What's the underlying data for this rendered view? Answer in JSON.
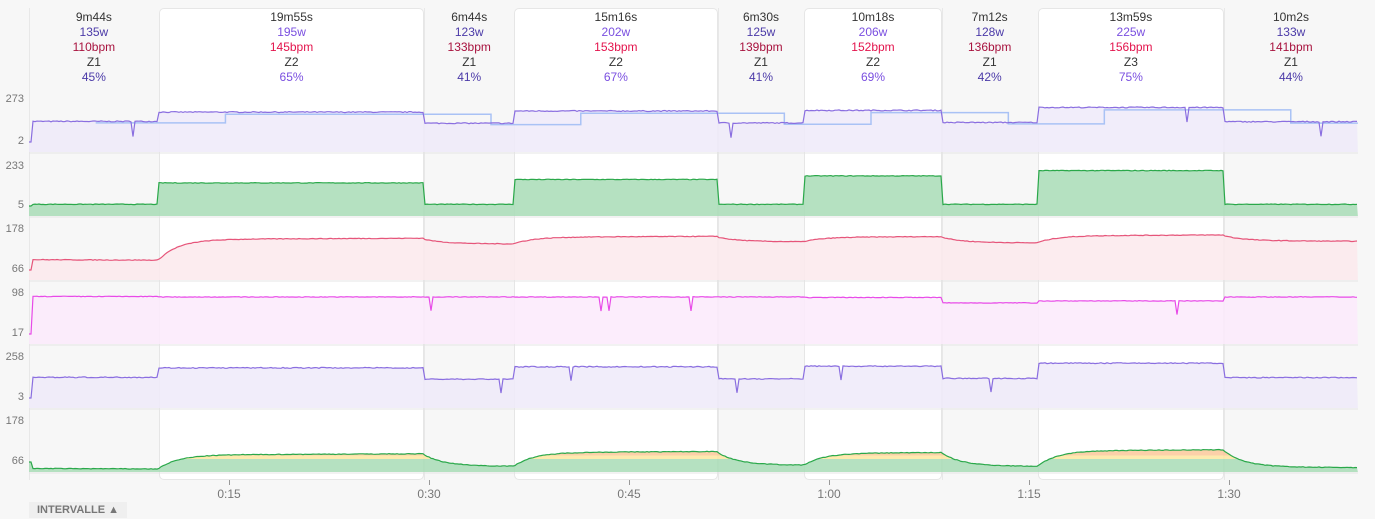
{
  "intervals": [
    {
      "duration": "9m44s",
      "minutes": 9.733,
      "watts": "135w",
      "bpm": "110bpm",
      "zone": "Z1",
      "percent": "45%",
      "type": "rest"
    },
    {
      "duration": "19m55s",
      "minutes": 19.917,
      "watts": "195w",
      "bpm": "145bpm",
      "zone": "Z2",
      "percent": "65%",
      "type": "work"
    },
    {
      "duration": "6m44s",
      "minutes": 6.733,
      "watts": "123w",
      "bpm": "133bpm",
      "zone": "Z1",
      "percent": "41%",
      "type": "rest"
    },
    {
      "duration": "15m16s",
      "minutes": 15.267,
      "watts": "202w",
      "bpm": "153bpm",
      "zone": "Z2",
      "percent": "67%",
      "type": "work"
    },
    {
      "duration": "6m30s",
      "minutes": 6.5,
      "watts": "125w",
      "bpm": "139bpm",
      "zone": "Z1",
      "percent": "41%",
      "type": "rest"
    },
    {
      "duration": "10m18s",
      "minutes": 10.3,
      "watts": "206w",
      "bpm": "152bpm",
      "zone": "Z2",
      "percent": "69%",
      "type": "work"
    },
    {
      "duration": "7m12s",
      "minutes": 7.2,
      "watts": "128w",
      "bpm": "136bpm",
      "zone": "Z1",
      "percent": "42%",
      "type": "rest"
    },
    {
      "duration": "13m59s",
      "minutes": 13.983,
      "watts": "225w",
      "bpm": "156bpm",
      "zone": "Z3",
      "percent": "75%",
      "type": "work"
    },
    {
      "duration": "10m2s",
      "minutes": 10.033,
      "watts": "133w",
      "bpm": "141bpm",
      "zone": "Z1",
      "percent": "44%",
      "type": "rest"
    }
  ],
  "chart_data": [
    {
      "type": "line",
      "ticks": [
        "273",
        "2"
      ],
      "ylim": [
        2,
        273
      ],
      "color": "#8a6ee0",
      "fill": "#efeaf9",
      "levels": [
        135,
        195,
        123,
        202,
        125,
        206,
        128,
        225,
        133
      ],
      "secondary_color": "#a9c2f5"
    },
    {
      "type": "area",
      "ticks": [
        "233",
        "5"
      ],
      "ylim": [
        5,
        233
      ],
      "color": "#2aa84a",
      "fill": "#a8dcb6",
      "levels": [
        15,
        140,
        15,
        160,
        15,
        181,
        15,
        212,
        15
      ],
      "peak_color": "#f5c542"
    },
    {
      "type": "line",
      "ticks": [
        "178",
        "66"
      ],
      "ylim": [
        66,
        178
      ],
      "color": "#e6557a",
      "fill": "#fbe9ec",
      "levels": [
        95,
        152,
        140,
        158,
        146,
        158,
        143,
        162,
        148
      ]
    },
    {
      "type": "line",
      "ticks": [
        "98",
        "17"
      ],
      "ylim": [
        17,
        98
      ],
      "color": "#e84ae8",
      "fill": "#fbeafb",
      "levels": [
        93,
        92,
        92,
        92,
        92,
        91,
        80,
        84,
        92
      ]
    },
    {
      "type": "line",
      "ticks": [
        "258",
        "3"
      ],
      "ylim": [
        3,
        258
      ],
      "color": "#8a6ee0",
      "fill": "#efeaf9",
      "levels": [
        135,
        195,
        123,
        202,
        125,
        206,
        128,
        225,
        133
      ]
    },
    {
      "type": "area",
      "ticks": [
        "178",
        "66"
      ],
      "ylim": [
        66,
        178
      ],
      "color": "#2aa84a",
      "fill": "#a8dcb6",
      "levels": [
        48,
        86,
        55,
        93,
        58,
        91,
        55,
        98,
        52
      ],
      "zone_colors": [
        "#a8dcb6",
        "#fde6a0",
        "#fcc89a"
      ]
    }
  ],
  "x_axis": {
    "ticks": [
      "0:15",
      "0:30",
      "0:45",
      "1:00",
      "1:15",
      "1:30"
    ],
    "tick_minutes": [
      15,
      30,
      45,
      60,
      75,
      90
    ]
  },
  "intervals_toggle": {
    "label": "INTERVALLE ▲"
  }
}
